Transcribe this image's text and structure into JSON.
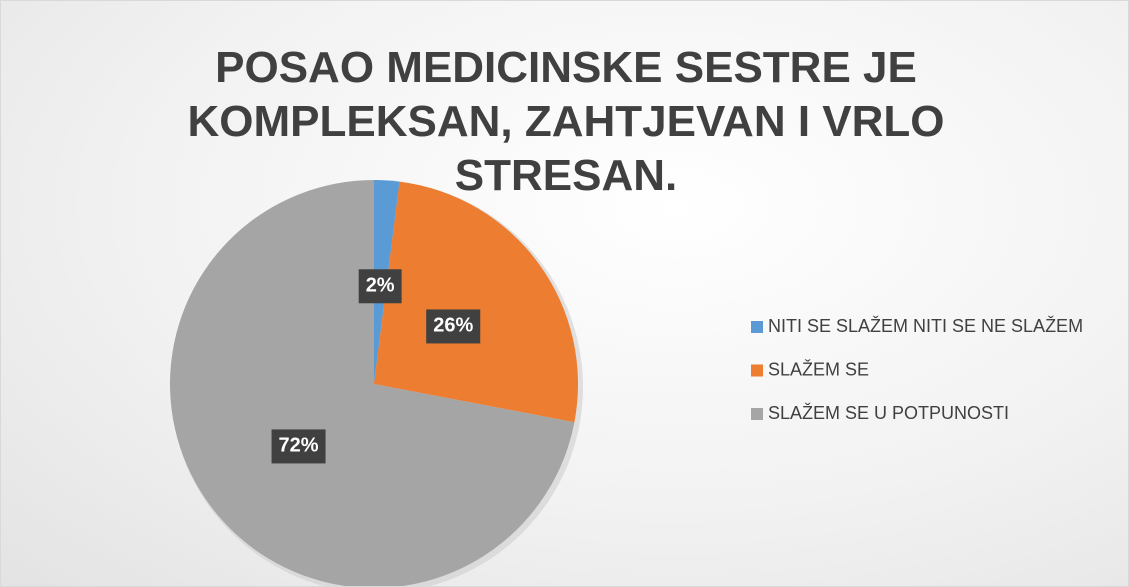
{
  "chart_data": {
    "type": "pie",
    "title": "POSAO MEDICINSKE SESTRE JE KOMPLEKSAN, ZAHTJEVAN I VRLO STRESAN.",
    "categories": [
      "NITI SE SLAŽEM NITI SE NE SLAŽEM",
      "SLAŽEM SE",
      "SLAŽEM SE U POTPUNOSTI"
    ],
    "values": [
      2,
      26,
      72
    ],
    "value_labels": [
      "2%",
      "26%",
      "72%"
    ],
    "colors": [
      "#5b9bd5",
      "#ed7d31",
      "#a5a5a5"
    ],
    "legend": "right"
  }
}
